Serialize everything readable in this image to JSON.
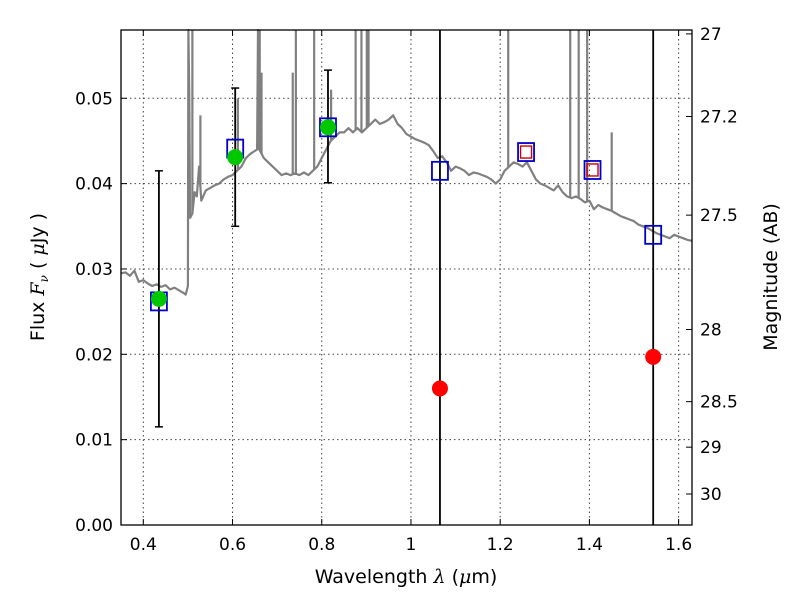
{
  "chart_data": {
    "type": "scatter",
    "xlabel": {
      "prefix": "Wavelength",
      "symbol": "λ",
      "unit_open": "(",
      "unit_mu": "μ",
      "unit_rest": "m)"
    },
    "ylabel": {
      "prefix": "Flux",
      "symbol": "F",
      "sub": "ν",
      "unit_open": "(",
      "unit_mu": "μ",
      "unit_rest": "Jy )"
    },
    "y2label": "Magnitude (AB)",
    "xlim": [
      0.35,
      1.63
    ],
    "ylim": [
      0.0,
      0.058
    ],
    "grid": true,
    "x_ticks": [
      {
        "value": 0.4,
        "label": "0.4"
      },
      {
        "value": 0.6,
        "label": "0.6"
      },
      {
        "value": 0.8,
        "label": "0.8"
      },
      {
        "value": 1.0,
        "label": "1"
      },
      {
        "value": 1.2,
        "label": "1.2"
      },
      {
        "value": 1.4,
        "label": "1.4"
      },
      {
        "value": 1.6,
        "label": "1.6"
      }
    ],
    "y_ticks": [
      {
        "value": 0.0,
        "label": "0.00"
      },
      {
        "value": 0.01,
        "label": "0.01"
      },
      {
        "value": 0.02,
        "label": "0.02"
      },
      {
        "value": 0.03,
        "label": "0.03"
      },
      {
        "value": 0.04,
        "label": "0.04"
      },
      {
        "value": 0.05,
        "label": "0.05"
      }
    ],
    "y2_ticks": [
      {
        "value": 27,
        "label": "27"
      },
      {
        "value": 27.2,
        "label": "27.2"
      },
      {
        "value": 27.5,
        "label": "27.5"
      },
      {
        "value": 28,
        "label": "28"
      },
      {
        "value": 28.5,
        "label": "28.5"
      },
      {
        "value": 29,
        "label": "29"
      },
      {
        "value": 30,
        "label": "30"
      }
    ],
    "colors": {
      "spectrum": "#808080",
      "green": "#00c800",
      "red": "#ff0000",
      "blue_box": "#0000cc",
      "red_box": "#cc0000",
      "errorbar": "#000000"
    },
    "series": [
      {
        "kind": "spectrum",
        "points": [
          [
            0.35,
            0.0295
          ],
          [
            0.36,
            0.0296
          ],
          [
            0.37,
            0.0292
          ],
          [
            0.38,
            0.0298
          ],
          [
            0.39,
            0.0285
          ],
          [
            0.4,
            0.0287
          ],
          [
            0.41,
            0.0283
          ],
          [
            0.42,
            0.028
          ],
          [
            0.43,
            0.0282
          ],
          [
            0.44,
            0.0279
          ],
          [
            0.45,
            0.0281
          ],
          [
            0.46,
            0.0276
          ],
          [
            0.47,
            0.0278
          ],
          [
            0.48,
            0.0275
          ],
          [
            0.49,
            0.0272
          ],
          [
            0.495,
            0.027
          ],
          [
            0.5,
            0.028
          ],
          [
            0.501,
            0.058
          ],
          [
            0.503,
            0.05
          ],
          [
            0.505,
            0.036
          ],
          [
            0.51,
            0.0365
          ],
          [
            0.515,
            0.039
          ],
          [
            0.52,
            0.0385
          ],
          [
            0.525,
            0.042
          ],
          [
            0.53,
            0.038
          ],
          [
            0.54,
            0.0392
          ],
          [
            0.55,
            0.0395
          ],
          [
            0.56,
            0.0398
          ],
          [
            0.57,
            0.04
          ],
          [
            0.58,
            0.0405
          ],
          [
            0.59,
            0.0408
          ],
          [
            0.6,
            0.041
          ],
          [
            0.61,
            0.0415
          ],
          [
            0.62,
            0.042
          ],
          [
            0.63,
            0.043
          ],
          [
            0.64,
            0.0435
          ],
          [
            0.655,
            0.044
          ],
          [
            0.657,
            0.058
          ],
          [
            0.66,
            0.044
          ],
          [
            0.67,
            0.043
          ],
          [
            0.68,
            0.0425
          ],
          [
            0.69,
            0.042
          ],
          [
            0.7,
            0.0415
          ],
          [
            0.71,
            0.041
          ],
          [
            0.72,
            0.0412
          ],
          [
            0.73,
            0.041
          ],
          [
            0.74,
            0.0412
          ],
          [
            0.75,
            0.041
          ],
          [
            0.76,
            0.0413
          ],
          [
            0.77,
            0.041
          ],
          [
            0.78,
            0.0415
          ],
          [
            0.79,
            0.042
          ],
          [
            0.8,
            0.043
          ],
          [
            0.81,
            0.044
          ],
          [
            0.82,
            0.045
          ],
          [
            0.83,
            0.0455
          ],
          [
            0.84,
            0.046
          ],
          [
            0.85,
            0.046
          ],
          [
            0.86,
            0.0465
          ],
          [
            0.87,
            0.046
          ],
          [
            0.88,
            0.0465
          ],
          [
            0.89,
            0.046
          ],
          [
            0.9,
            0.0465
          ],
          [
            0.91,
            0.047
          ],
          [
            0.92,
            0.0475
          ],
          [
            0.93,
            0.047
          ],
          [
            0.94,
            0.0472
          ],
          [
            0.95,
            0.0475
          ],
          [
            0.96,
            0.048
          ],
          [
            0.97,
            0.047
          ],
          [
            0.98,
            0.0465
          ],
          [
            0.99,
            0.0458
          ],
          [
            1.0,
            0.0455
          ],
          [
            1.01,
            0.0452
          ],
          [
            1.02,
            0.045
          ],
          [
            1.03,
            0.0448
          ],
          [
            1.04,
            0.0445
          ],
          [
            1.05,
            0.0438
          ],
          [
            1.06,
            0.043
          ],
          [
            1.07,
            0.0432
          ],
          [
            1.08,
            0.0425
          ],
          [
            1.09,
            0.0415
          ],
          [
            1.1,
            0.042
          ],
          [
            1.11,
            0.0418
          ],
          [
            1.12,
            0.0415
          ],
          [
            1.13,
            0.041
          ],
          [
            1.14,
            0.0413
          ],
          [
            1.15,
            0.0412
          ],
          [
            1.16,
            0.041
          ],
          [
            1.17,
            0.0408
          ],
          [
            1.18,
            0.0405
          ],
          [
            1.19,
            0.04
          ],
          [
            1.2,
            0.0405
          ],
          [
            1.21,
            0.0415
          ],
          [
            1.22,
            0.042
          ],
          [
            1.23,
            0.0425
          ],
          [
            1.24,
            0.0423
          ],
          [
            1.25,
            0.042
          ],
          [
            1.26,
            0.0425
          ],
          [
            1.27,
            0.0415
          ],
          [
            1.28,
            0.0405
          ],
          [
            1.29,
            0.04
          ],
          [
            1.3,
            0.0398
          ],
          [
            1.31,
            0.0395
          ],
          [
            1.32,
            0.0392
          ],
          [
            1.33,
            0.0398
          ],
          [
            1.34,
            0.039
          ],
          [
            1.35,
            0.0385
          ],
          [
            1.36,
            0.0383
          ],
          [
            1.37,
            0.0385
          ],
          [
            1.38,
            0.0382
          ],
          [
            1.39,
            0.0378
          ],
          [
            1.4,
            0.038
          ],
          [
            1.41,
            0.037
          ],
          [
            1.42,
            0.0375
          ],
          [
            1.43,
            0.0372
          ],
          [
            1.44,
            0.037
          ],
          [
            1.45,
            0.0368
          ],
          [
            1.46,
            0.0365
          ],
          [
            1.47,
            0.0362
          ],
          [
            1.48,
            0.036
          ],
          [
            1.49,
            0.0358
          ],
          [
            1.5,
            0.0356
          ],
          [
            1.51,
            0.0352
          ],
          [
            1.52,
            0.035
          ],
          [
            1.53,
            0.0348
          ],
          [
            1.54,
            0.0345
          ],
          [
            1.55,
            0.0342
          ],
          [
            1.56,
            0.034
          ],
          [
            1.57,
            0.0338
          ],
          [
            1.58,
            0.0336
          ],
          [
            1.59,
            0.034
          ],
          [
            1.6,
            0.0338
          ],
          [
            1.61,
            0.0336
          ],
          [
            1.62,
            0.0334
          ],
          [
            1.63,
            0.0333
          ]
        ],
        "lines": [
          [
            0.51,
            0.058
          ],
          [
            0.528,
            0.048
          ],
          [
            0.612,
            0.05
          ],
          [
            0.661,
            0.058
          ],
          [
            0.665,
            0.053
          ],
          [
            0.735,
            0.053
          ],
          [
            0.742,
            0.058
          ],
          [
            0.783,
            0.058
          ],
          [
            0.821,
            0.051
          ],
          [
            0.876,
            0.058
          ],
          [
            0.889,
            0.058
          ],
          [
            0.901,
            0.058
          ],
          [
            0.905,
            0.058
          ],
          [
            1.218,
            0.058
          ],
          [
            1.357,
            0.058
          ],
          [
            1.376,
            0.058
          ],
          [
            1.395,
            0.058
          ],
          [
            1.45,
            0.046
          ]
        ]
      },
      {
        "kind": "green-detections",
        "points": [
          {
            "x": 0.435,
            "y": 0.0265,
            "err": [
              0.0115,
              0.0415
            ]
          },
          {
            "x": 0.606,
            "y": 0.0431,
            "err": [
              0.035,
              0.0512
            ]
          },
          {
            "x": 0.814,
            "y": 0.0466,
            "err": [
              0.0401,
              0.0533
            ]
          }
        ]
      },
      {
        "kind": "red-upper-limits",
        "points": [
          {
            "x": 1.065,
            "y": 0.016,
            "err": [
              0.0,
              0.058
            ]
          },
          {
            "x": 1.543,
            "y": 0.0197,
            "err": [
              0.0,
              0.058
            ]
          }
        ]
      },
      {
        "kind": "blue-model-boxes",
        "points": [
          {
            "x": 0.435,
            "y": 0.0262
          },
          {
            "x": 0.606,
            "y": 0.0441
          },
          {
            "x": 0.814,
            "y": 0.0466
          },
          {
            "x": 1.065,
            "y": 0.0415
          },
          {
            "x": 1.258,
            "y": 0.0437
          },
          {
            "x": 1.407,
            "y": 0.0416
          },
          {
            "x": 1.543,
            "y": 0.034
          }
        ]
      },
      {
        "kind": "red-inner-boxes",
        "points": [
          {
            "x": 1.258,
            "y": 0.0437
          },
          {
            "x": 1.407,
            "y": 0.0416
          }
        ]
      }
    ]
  }
}
